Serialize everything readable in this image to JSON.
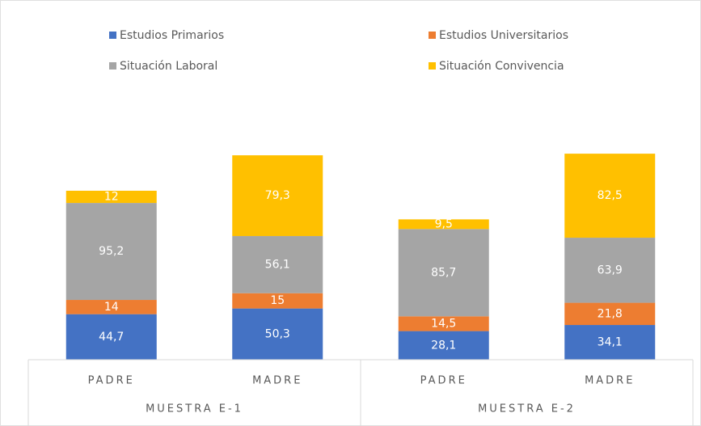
{
  "chart_data": {
    "type": "stacked_bar",
    "categories": [
      "PADRE",
      "MADRE",
      "PADRE",
      "MADRE"
    ],
    "groups": [
      {
        "label": "MUESTRA E-1",
        "span": 2
      },
      {
        "label": "MUESTRA E-2",
        "span": 2
      }
    ],
    "series": [
      {
        "name": "Estudios Primarios",
        "color": "#4472c4",
        "values": [
          44.7,
          50.3,
          28.1,
          34.1
        ],
        "value_labels": [
          "44,7",
          "50,3",
          "28,1",
          "34,1"
        ]
      },
      {
        "name": "Estudios Universitarios",
        "color": "#ed7d31",
        "values": [
          14,
          15,
          14.5,
          21.8
        ],
        "value_labels": [
          "14",
          "15",
          "14,5",
          "21,8"
        ]
      },
      {
        "name": "Situación Laboral",
        "color": "#a5a5a5",
        "values": [
          95.2,
          56.1,
          85.7,
          63.9
        ],
        "value_labels": [
          "95,2",
          "56,1",
          "85,7",
          "63,9"
        ]
      },
      {
        "name": "Situación Convivencia",
        "color": "#ffc000",
        "values": [
          12,
          79.3,
          9.5,
          82.5
        ],
        "value_labels": [
          "12",
          "79,3",
          "9,5",
          "82,5"
        ]
      }
    ],
    "ylim": [
      0,
      250
    ]
  }
}
